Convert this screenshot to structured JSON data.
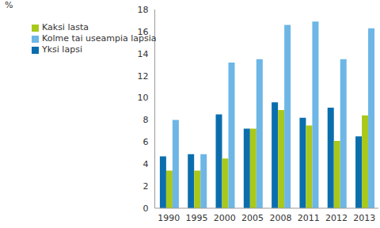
{
  "chart_data": {
    "type": "bar",
    "y_label": "%",
    "categories": [
      "1990",
      "1995",
      "2000",
      "2005",
      "2008",
      "2011",
      "2012",
      "2013"
    ],
    "series": [
      {
        "name": "Yksi lapsi",
        "color": "#0a6eae",
        "values": [
          4.7,
          4.9,
          8.5,
          7.2,
          9.6,
          8.2,
          9.1,
          6.5
        ]
      },
      {
        "name": "Kaksi lasta",
        "color": "#a9c81c",
        "values": [
          3.4,
          3.4,
          4.5,
          7.2,
          8.9,
          7.5,
          6.1,
          8.4
        ]
      },
      {
        "name": "Kolme tai useampia lapsia",
        "color": "#6db6e6",
        "values": [
          8.0,
          4.9,
          13.2,
          13.5,
          16.6,
          16.9,
          13.5,
          16.3
        ]
      }
    ],
    "ylim": [
      0,
      18
    ],
    "yticks": [
      0,
      2,
      4,
      6,
      8,
      10,
      12,
      14,
      16,
      18
    ],
    "grid": false,
    "legend": "upper left"
  }
}
